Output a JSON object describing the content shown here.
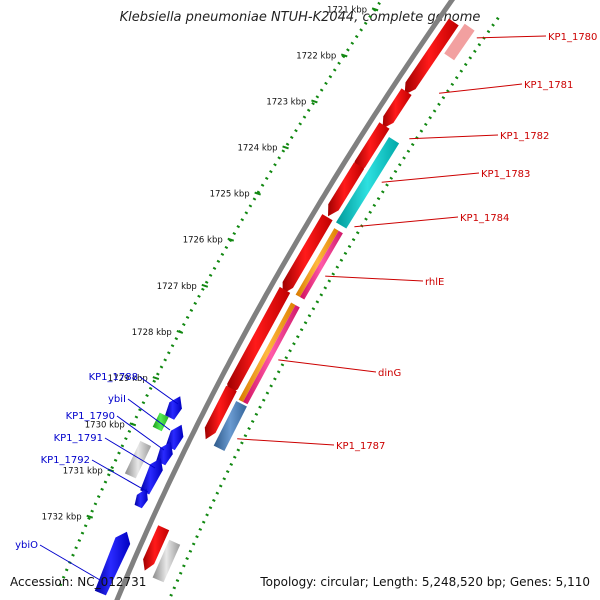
{
  "title": "Klebsiella pneumoniae NTUH-K2044, complete genome",
  "accession_text": "Accession: NC_012731",
  "summary_text": "Topology: circular; Length: 5,248,520 bp; Genes: 5,110",
  "colors": {
    "backbone": "#808080",
    "forward_gene": "#ee0000",
    "reverse_gene": "#0000ee",
    "cyan_feature": "#00c8c8",
    "orange_feature": "#ff9a00",
    "pink_feature": "#ff2a8a",
    "steelblue_feature": "#4a7ab5",
    "green_feature": "#33cc33",
    "gray_feature": "#bbbbbb",
    "tick_dots": "#118811",
    "label_red": "#cc0000",
    "label_blue": "#0000cc"
  },
  "ruler": {
    "labels": [
      "1721 kbp",
      "1722 kbp",
      "1723 kbp",
      "1724 kbp",
      "1725 kbp",
      "1726 kbp",
      "1727 kbp",
      "1728 kbp",
      "1729 kbp",
      "1730 kbp",
      "1731 kbp",
      "1732 kbp"
    ]
  },
  "gene_labels_right": [
    "KP1_1780",
    "KP1_1781",
    "KP1_1782",
    "KP1_1783",
    "KP1_1784",
    "rhlE",
    "dinG",
    "KP1_1787"
  ],
  "gene_labels_left": [
    "KP1_1788",
    "ybiI",
    "KP1_1790",
    "KP1_1791",
    "KP1_1792",
    "ybiO"
  ]
}
